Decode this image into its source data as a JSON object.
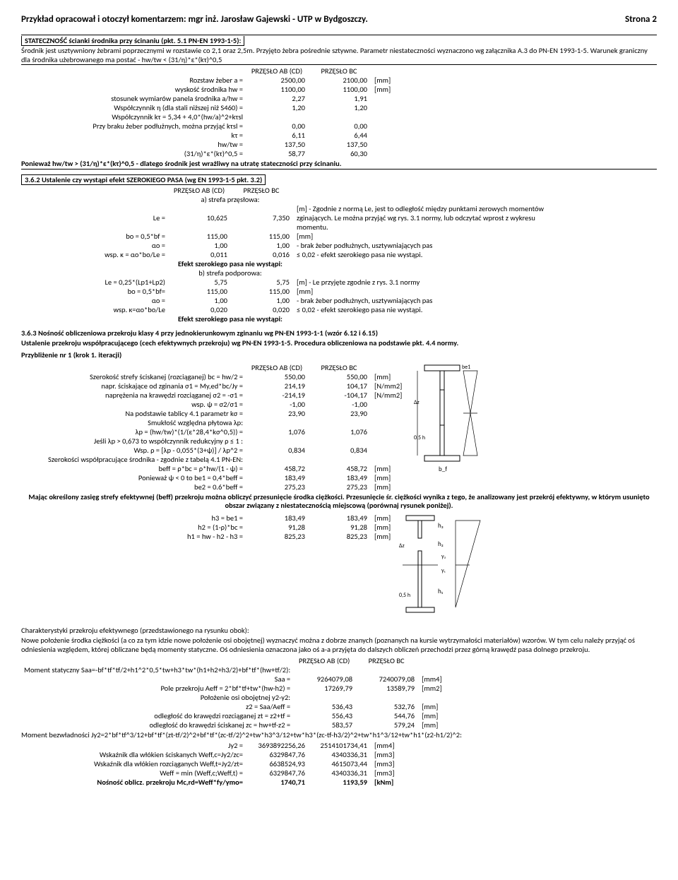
{
  "header": {
    "left": "Przykład opracował i otoczył komentarzem: mgr inż. Jarosław Gajewski - UTP w Bydgoszczy.",
    "right": "Strona 2"
  },
  "s1": {
    "title": "STATECZNOŚĆ ścianki środnika przy ścinaniu (pkt. 5.1 PN-EN 1993-1-5):",
    "intro": "Środnik jest usztywniony żebrami poprzecznymi w rozstawie co 2,1 oraz 2,5m. Przyjęto żebra pośrednie sztywne. Parametr niestateczności wyznaczono wg załącznika A.3 do PN-EN 1993-1-5. Warunek graniczny dla środnika użebrowanego ma postać -  hw/tw < (31/η)*ε*(kτ)^0,5",
    "colA": "PRZĘSŁO AB (CD)",
    "colB": "PRZĘSŁO BC",
    "rows": [
      {
        "l": "Rozstaw żeber a =",
        "a": "2500,00",
        "b": "2100,00",
        "u": "[mm]"
      },
      {
        "l": "wyskość środnika hw =",
        "a": "1100,00",
        "b": "1100,00",
        "u": "[mm]"
      },
      {
        "l": "stosunek wymiarów panela środnika  a/hw =",
        "a": "2,27",
        "b": "1,91",
        "u": ""
      },
      {
        "l": "Współczynnik η (dla stali niższej niż S460) =",
        "a": "1,20",
        "b": "1,20",
        "u": ""
      },
      {
        "l": "Współczynnik kτ = 5,34 + 4,0*(hw/a)^2+kτsl",
        "a": "",
        "b": "",
        "u": ""
      },
      {
        "l": "Przy braku żeber podłużnych, można przyjąć kτsl =",
        "a": "0,00",
        "b": "0,00",
        "u": ""
      },
      {
        "l": "kτ =",
        "a": "6,11",
        "b": "6,44",
        "u": ""
      },
      {
        "l": "hw/tw =",
        "a": "137,50",
        "b": "137,50",
        "u": ""
      },
      {
        "l": "(31/η)*ε*(kτ)^0,5 =",
        "a": "58,77",
        "b": "60,30",
        "u": ""
      }
    ],
    "concl": "Ponieważ  hw/tw > (31/η)*ε*(kτ)^0,5 - dlatego środnik jest wrażliwy na utratę stateczności przy ścinaniu."
  },
  "s2": {
    "title": "3.6.2 Ustalenie czy wystąpi efekt SZEROKIEGO PASA (wg EN 1993-1-5 pkt. 3.2)",
    "colA": "PRZĘSŁO AB (CD)",
    "colB": "PRZĘSŁO BC",
    "subA": "a) strefa przęsłowa:",
    "rowsA": [
      {
        "l": "Le =",
        "a": "10,625",
        "b": "7,350",
        "n": "[m] - Zgodnie z normą Le, jest to odległość między punktami zerowych momentów zginających. Le można przyjąć wg rys. 3.1 normy, lub odczytać wprost z wykresu momentu."
      },
      {
        "l": "bo = 0,5*bf =",
        "a": "115,00",
        "b": "115,00",
        "n": "[mm]"
      },
      {
        "l": "αo =",
        "a": "1,00",
        "b": "1,00",
        "n": " - brak żeber podłużnych, usztywniających pas"
      },
      {
        "l": "wsp. κ = αo*bo/Le =",
        "a": "0,011",
        "b": "0,016",
        "n": "≤ 0,02 - efekt szerokiego pasa nie wystąpi."
      }
    ],
    "effA": "Efekt szerokiego pasa nie wystąpi:",
    "subB": "b) strefa podporowa:",
    "rowsB": [
      {
        "l": "Le = 0,25*(Lp1+Lp2)",
        "a": "5,75",
        "b": "5,75",
        "n": "[m] - Le przyjęte zgodnie z rys. 3.1 normy"
      },
      {
        "l": "bo = 0,5*bf=",
        "a": "115,00",
        "b": "115,00",
        "n": "[mm]"
      },
      {
        "l": "αo =",
        "a": "1,00",
        "b": "1,00",
        "n": " - brak żeber podłużnych, usztywniających pas"
      },
      {
        "l": "wsp. κ=αo*bo/Le",
        "a": "0,020",
        "b": "0,020",
        "n": "≤ 0,02 - efekt szerokiego pasa nie wystąpi."
      }
    ],
    "effB": "Efekt szerokiego pasa nie wystąpi:"
  },
  "s3": {
    "title1": "3.6.3 Nośność obliczeniowa przekroju klasy 4 przy jednokierunkowym zginaniu wg PN-EN 1993-1-1 (wzór 6.12 i 6.15)",
    "title2": "Ustalenie przekroju współpracującego (cech efektywnych przekroju) wg PN-EN 1993-1-5. Procedura obliczeniowa na podstawie pkt. 4.4 normy.",
    "sub": "Przybliżenie nr 1 (krok 1. iteracji)",
    "colA": "PRZĘSŁO AB (CD)",
    "colB": "PRZĘSŁO BC",
    "rows1": [
      {
        "l": "Szerokość strefy ściskanej  (rozciąganej) bc = hw/2 =",
        "a": "550,00",
        "b": "550,00",
        "u": "[mm]"
      },
      {
        "l": "napr. ściskające od zginania σ1 = My,ed*bc/Jy =",
        "a": "214,19",
        "b": "104,17",
        "u": "[N/mm2]"
      },
      {
        "l": "naprężenia na krawędzi rozciąganej σ2 = -σ1 =",
        "a": "-214,19",
        "b": "-104,17",
        "u": "[N/mm2]"
      },
      {
        "l": "wsp. ψ = σ2/σ1 =",
        "a": "-1,00",
        "b": "-1,00",
        "u": ""
      },
      {
        "l": "Na podstawie tablicy 4.1 parametr kσ =",
        "a": "23,90",
        "b": "23,90",
        "u": ""
      },
      {
        "l": "Smukłość względna płytowa λp:",
        "a": "",
        "b": "",
        "u": ""
      },
      {
        "l": "λp = (hw/tw)*(1/(ε*28,4*kσ^0,5)) =",
        "a": "1,076",
        "b": "1,076",
        "u": ""
      },
      {
        "l": "Jeśli λp > 0,673 to współczynnik redukcyjny ρ ≤ 1 :",
        "a": "",
        "b": "",
        "u": ""
      },
      {
        "l": "Wsp. ρ = [λp - 0,055*(3+ψ)] / λp^2 =",
        "a": "0,834",
        "b": "0,834",
        "u": ""
      },
      {
        "l": "Szerokości współpracujące środnika - zgodnie z tabelą 4.1 PN-EN:",
        "a": "",
        "b": "",
        "u": ""
      },
      {
        "l": "beff = ρ*bc = ρ*hw/(1 - ψ) =",
        "a": "458,72",
        "b": "458,72",
        "u": "[mm]"
      },
      {
        "l": "Ponieważ ψ < 0 to be1 = 0,4*beff =",
        "a": "183,49",
        "b": "183,49",
        "u": "[mm]"
      },
      {
        "l": "be2 = 0.6*beff =",
        "a": "275,23",
        "b": "275,23",
        "u": "[mm]"
      }
    ],
    "para1": "Mając określony zasięg strefy efektywnej (beff) przekroju można obliczyć przesunięcie środka ciężkości. Przesunięcie śr. ciężkości wynika z tego, że analizowany jest przekrój efektywny, w którym usunięto obszar związany z niestatecznością miejscową (porównaj rysunek poniżej).",
    "rows2": [
      {
        "l": "h3 = be1 =",
        "a": "183,49",
        "b": "183,49",
        "u": "[mm]"
      },
      {
        "l": "h2 = (1-ρ)*bc =",
        "a": "91,28",
        "b": "91,28",
        "u": "[mm]"
      },
      {
        "l": "h1 = hw - h2 - h3 =",
        "a": "825,23",
        "b": "825,23",
        "u": "[mm]"
      }
    ],
    "para2a": "Charakterystyki przekroju efektywnego (przedstawionego na rysunku obok):",
    "para2b": "Nowe położenie środka ciężkości (a co za tym idzie nowe położenie osi obojętnej) wyznaczyć można z dobrze znanych (poznanych na kursie wytrzymałości materiałów) wzorów. W tym celu należy przyjąć oś odniesienia względem, której obliczane będą momenty statyczne. Oś odniesienia oznaczona jako oś a-a przyjęta do dalszych obliczeń przechodzi przez górną krawędź pasa dolnego przekroju.",
    "colA2": "PRZĘSŁO AB (CD)",
    "colB2": "PRZĘSŁO BC",
    "rows3": [
      {
        "l": "Moment statyczny Saa=-bf*tf*tf/2+h1^2*0,5*tw+h3*tw*(h1+h2+h3/2)+bf*tf*(hw+tf/2):",
        "a": "",
        "b": "",
        "u": ""
      },
      {
        "l": "Saa =",
        "a": "9264079,08",
        "b": "7240079,08",
        "u": "[mm4]"
      },
      {
        "l": "Pole przekroju Aeff = 2*bf*tf+tw*(hw-h2) =",
        "a": "17269,79",
        "b": "13589,79",
        "u": "[mm2]"
      },
      {
        "l": "Położenie osi obojętnej y2-y2:",
        "a": "",
        "b": "",
        "u": ""
      },
      {
        "l": "z2 = Saa/Aeff =",
        "a": "536,43",
        "b": "532,76",
        "u": "[mm]"
      },
      {
        "l": "odległość do krawędzi rozciąganej zt = z2+tf =",
        "a": "556,43",
        "b": "544,76",
        "u": "[mm]"
      },
      {
        "l": "odległość do krawędzi ściskanej zc = hw+tf-z2 =",
        "a": "583,57",
        "b": "579,24",
        "u": "[mm]"
      }
    ],
    "para3": "Moment bezwładności Jy2=2*bf*tf^3/12+bf*tf*(zt-tf/2)^2+bf*tf*(zc-tf/2)^2+tw*h3^3/12+tw*h3*(zc-tf-h3/2)^2+tw*h1^3/12+tw*h1*(z2-h1/2)^2:",
    "rows4": [
      {
        "l": "Jy2 =",
        "a": "3693892256,26",
        "b": "2514101734,41",
        "u": "[mm4]"
      },
      {
        "l": "Wskaźnik dla włókien ściskanych Weff,c=Jy2/zc=",
        "a": "6329847,76",
        "b": "4340336,31",
        "u": "[mm3]"
      },
      {
        "l": "Wskaźnik dla włókien rozciąganych Weff,t=Jy2/zt=",
        "a": "6638524,93",
        "b": "4615073,44",
        "u": "[mm3]"
      },
      {
        "l": "Weff = min (Weff,c;Weff,t) =",
        "a": "6329847,76",
        "b": "4340336,31",
        "u": "[mm3]"
      },
      {
        "l": "Nośność oblicz. przekroju Mc,rd=Weff*fy/γmo=",
        "a": "1740,71",
        "b": "1193,59",
        "u": "[kNm]",
        "bold": true
      }
    ]
  }
}
